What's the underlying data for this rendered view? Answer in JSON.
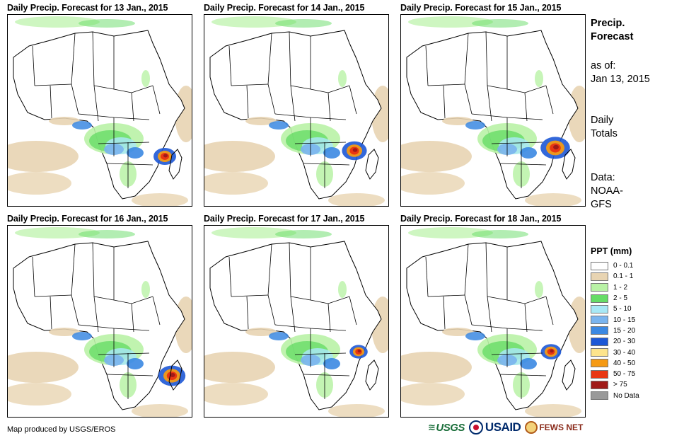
{
  "panels": [
    {
      "title": "Daily Precip. Forecast for 13 Jan., 2015"
    },
    {
      "title": "Daily Precip. Forecast for 14 Jan., 2015"
    },
    {
      "title": "Daily Precip. Forecast for 15 Jan., 2015"
    },
    {
      "title": "Daily Precip. Forecast for 16 Jan., 2015"
    },
    {
      "title": "Daily Precip. Forecast for 17 Jan., 2015"
    },
    {
      "title": "Daily Precip. Forecast for 18 Jan., 2015"
    }
  ],
  "side": {
    "title_line1": "Precip.",
    "title_line2": "Forecast",
    "asof_label": "as of:",
    "asof_date": "Jan 13, 2015",
    "totals_line1": "Daily",
    "totals_line2": "Totals",
    "data_line1": "Data:",
    "data_line2": "NOAA-",
    "data_line3": "GFS"
  },
  "legend": {
    "title": "PPT (mm)",
    "items": [
      {
        "label": "0 - 0.1",
        "color": "#ffffff"
      },
      {
        "label": "0.1 - 1",
        "color": "#e8d4b2"
      },
      {
        "label": "1 - 2",
        "color": "#b9f2a6"
      },
      {
        "label": "2 - 5",
        "color": "#66dc66"
      },
      {
        "label": "5 - 10",
        "color": "#a8e8f5"
      },
      {
        "label": "10 - 15",
        "color": "#7ab4ee"
      },
      {
        "label": "15 - 20",
        "color": "#3b88e2"
      },
      {
        "label": "20 - 30",
        "color": "#1d58d6"
      },
      {
        "label": "30 - 40",
        "color": "#fde48c"
      },
      {
        "label": "40 - 50",
        "color": "#f59a14"
      },
      {
        "label": "50 - 75",
        "color": "#e83612"
      },
      {
        "label": "> 75",
        "color": "#a01a18"
      },
      {
        "label": "No Data",
        "color": "#999999"
      }
    ]
  },
  "credit": "Map produced by USGS/EROS",
  "logos": {
    "usgs": "USGS",
    "usaid": "USAID",
    "fews": "FEWS NET"
  }
}
